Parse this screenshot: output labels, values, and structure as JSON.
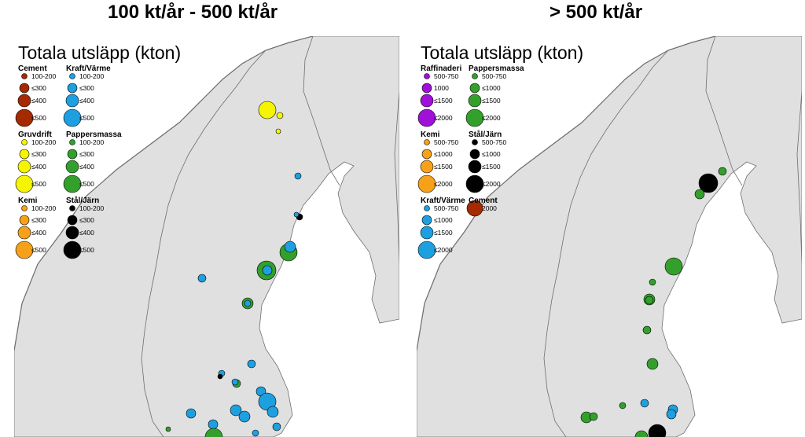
{
  "headings": {
    "left": "100 kt/år - 500 kt/år",
    "right": "> 500 kt/år"
  },
  "colors": {
    "land": "#e0e0e0",
    "sea": "#ffffff",
    "border": "#6e6e6e",
    "cement": "#a52a00",
    "kraft_varme": "#1e9fe0",
    "gruvdrift": "#f5f500",
    "pappersmassa": "#33a02c",
    "kemi": "#f7a11a",
    "stal_jarn": "#000000",
    "raffinaderi": "#a010d8"
  },
  "panels": [
    {
      "title": "Totala utsläpp (kton)",
      "legend": [
        {
          "category": "Cement",
          "color_key": "cement",
          "items": [
            "100-200",
            "≤300",
            "≤400",
            "≤500"
          ]
        },
        {
          "category": "Kraft/Värme",
          "color_key": "kraft_varme",
          "items": [
            "100-200",
            "≤300",
            "≤400",
            "≤500"
          ]
        },
        {
          "category": "Gruvdrift",
          "color_key": "gruvdrift",
          "items": [
            "100-200",
            "≤300",
            "≤400",
            "≤500"
          ]
        },
        {
          "category": "Pappersmassa",
          "color_key": "pappersmassa",
          "items": [
            "100-200",
            "≤300",
            "≤400",
            "≤500"
          ]
        },
        {
          "category": "Kemi",
          "color_key": "kemi",
          "items": [
            "100-200",
            "≤300",
            "≤400",
            "≤500"
          ]
        },
        {
          "category": "Stål/Järn",
          "color_key": "stal_jarn",
          "items": [
            "100-200",
            "≤300",
            "≤400",
            "≤500"
          ]
        }
      ]
    },
    {
      "title": "Totala utsläpp (kton)",
      "legend": [
        {
          "category": "Raffinaderi",
          "color_key": "raffinaderi",
          "items": [
            "500-750",
            "1000",
            "≤1500",
            "≤2000"
          ]
        },
        {
          "category": "Pappersmassa",
          "color_key": "pappersmassa",
          "items": [
            "500-750",
            "≤1000",
            "≤1500",
            "≤2000"
          ]
        },
        {
          "category": "Kemi",
          "color_key": "kemi",
          "items": [
            "500-750",
            "≤1000",
            "≤1500",
            "≤2000"
          ]
        },
        {
          "category": "Stål/Järn",
          "color_key": "stal_jarn",
          "items": [
            "500-750",
            "≤1000",
            "≤1500",
            "≤2000"
          ]
        },
        {
          "category": "Kraft/Värme",
          "color_key": "kraft_varme",
          "items": [
            "500-750",
            "≤1000",
            "≤1500",
            "≤2000"
          ]
        },
        {
          "category": "Cement",
          "color_key": "cement",
          "items": [
            "2000"
          ]
        }
      ]
    }
  ]
}
